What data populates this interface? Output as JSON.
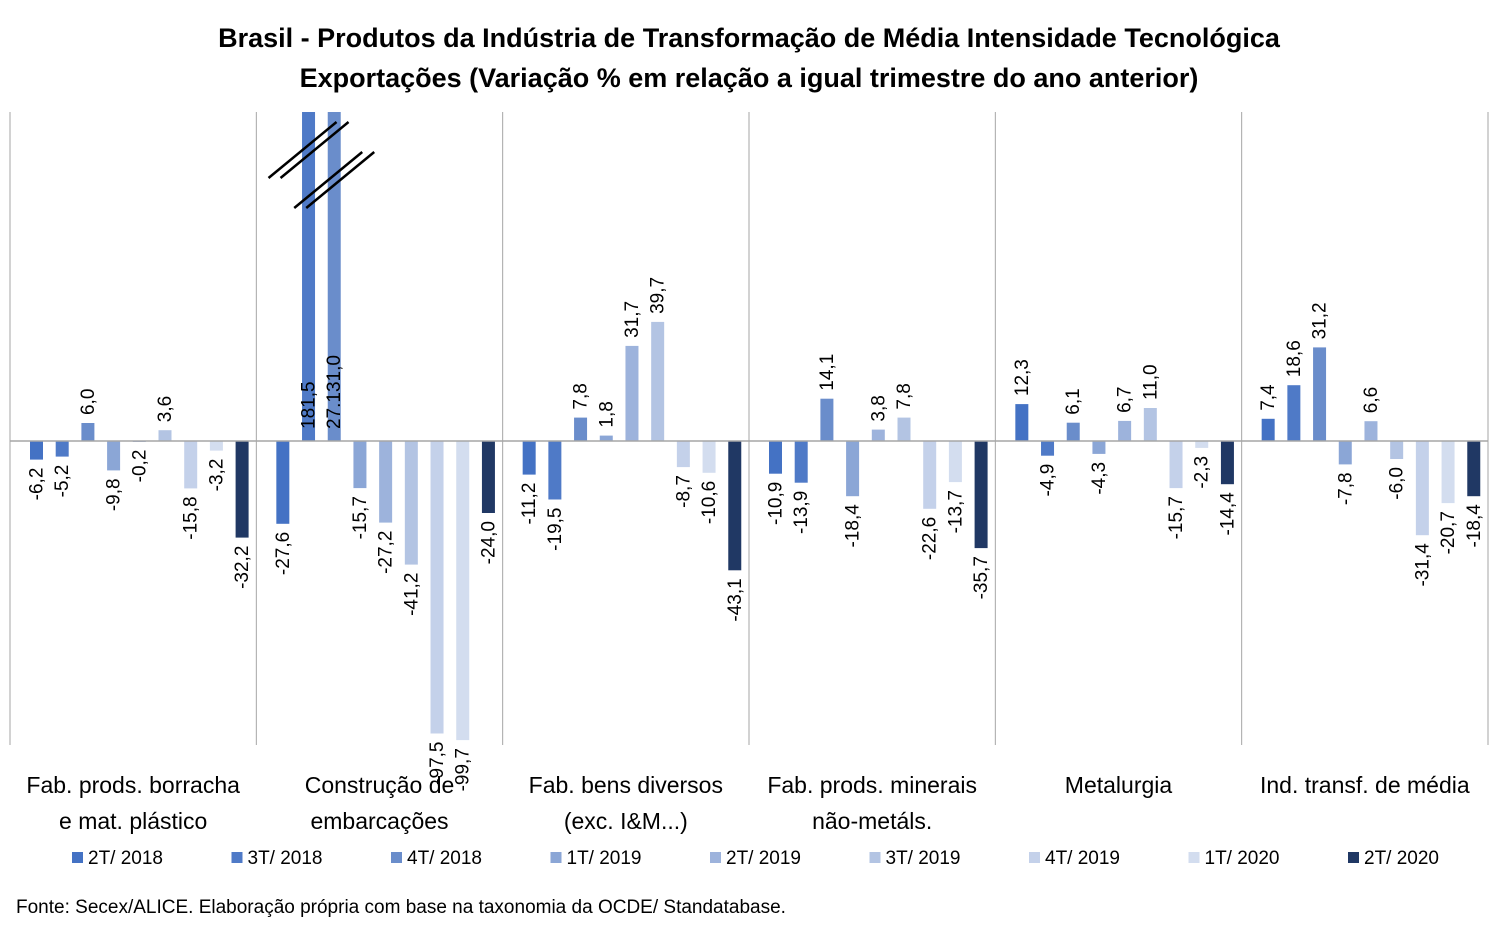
{
  "chart_data": {
    "type": "bar",
    "title": "Brasil - Produtos da Indústria de Transformação de Média Intensidade Tecnológica",
    "subtitle": "Exportações (Variação % em relação a igual trimestre do ano anterior)",
    "categories": [
      [
        "Fab. prods. borracha",
        "e mat. plástico"
      ],
      [
        "Construção de",
        "embarcações"
      ],
      [
        "Fab. bens diversos",
        "(exc. I&M...)"
      ],
      [
        "Fab. prods. minerais",
        "não-metáls."
      ],
      [
        "Metalurgia"
      ],
      [
        "Ind. transf. de média"
      ]
    ],
    "series": [
      {
        "name": "2T/ 2018",
        "color": "#4472c4",
        "values": [
          -6.2,
          -27.6,
          -11.2,
          -10.9,
          12.3,
          7.4
        ],
        "labels": [
          "-6,2",
          "-27,6",
          "-11,2",
          "-10,9",
          "12,3",
          "7,4"
        ]
      },
      {
        "name": "3T/ 2018",
        "color": "#4f7ac7",
        "values": [
          -5.2,
          181.5,
          -19.5,
          -13.9,
          -4.9,
          18.6
        ],
        "labels": [
          "-5,2",
          "181,5",
          "-19,5",
          "-13,9",
          "-4,9",
          "18,6"
        ]
      },
      {
        "name": "4T/ 2018",
        "color": "#6a8dcb",
        "values": [
          6.0,
          27131.0,
          7.8,
          14.1,
          6.1,
          31.2
        ],
        "labels": [
          "6,0",
          "27.131,0",
          "7,8",
          "14,1",
          "6,1",
          "31,2"
        ]
      },
      {
        "name": "1T/ 2019",
        "color": "#8ba6d6",
        "values": [
          -9.8,
          -15.7,
          1.8,
          -18.4,
          -4.3,
          -7.8
        ],
        "labels": [
          "-9,8",
          "-15,7",
          "1,8",
          "-18,4",
          "-4,3",
          "-7,8"
        ]
      },
      {
        "name": "2T/ 2019",
        "color": "#9db3dc",
        "values": [
          -0.2,
          -27.2,
          31.7,
          3.8,
          6.7,
          6.6
        ],
        "labels": [
          "-0,2",
          "-27,2",
          "31,7",
          "3,8",
          "6,7",
          "6,6"
        ]
      },
      {
        "name": "3T/ 2019",
        "color": "#b3c4e3",
        "values": [
          3.6,
          -41.2,
          39.7,
          7.8,
          11.0,
          -6.0
        ],
        "labels": [
          "3,6",
          "-41,2",
          "39,7",
          "7,8",
          "11,0",
          "-6,0"
        ]
      },
      {
        "name": "4T/ 2019",
        "color": "#c4d1ea",
        "values": [
          -15.8,
          -97.5,
          -8.7,
          -22.6,
          -15.7,
          -31.4
        ],
        "labels": [
          "-15,8",
          "-97,5",
          "-8,7",
          "-22,6",
          "-15,7",
          "-31,4"
        ]
      },
      {
        "name": "1T/ 2020",
        "color": "#d3ddef",
        "values": [
          -3.2,
          -99.7,
          -10.6,
          -13.7,
          -2.3,
          -20.7
        ],
        "labels": [
          "-3,2",
          "-99,7",
          "-10,6",
          "-13,7",
          "-2,3",
          "-20,7"
        ]
      },
      {
        "name": "2T/ 2020",
        "color": "#203864",
        "values": [
          -32.2,
          -24.0,
          -43.1,
          -35.7,
          -14.4,
          -18.4
        ],
        "labels": [
          "-32,2",
          "-24,0",
          "-43,1",
          "-35,7",
          "-14,4",
          "-18,4"
        ]
      }
    ],
    "ylim": [
      -112,
      121
    ],
    "grid": false,
    "legend_position": "bottom",
    "axis_break": "Construção de embarcações, 3T/ 2018 and 4T/ 2018 bars exceed the top of the axis"
  },
  "source": "Fonte: Secex/ALICE. Elaboração própria com base na taxonomia da OCDE/ Standatabase."
}
